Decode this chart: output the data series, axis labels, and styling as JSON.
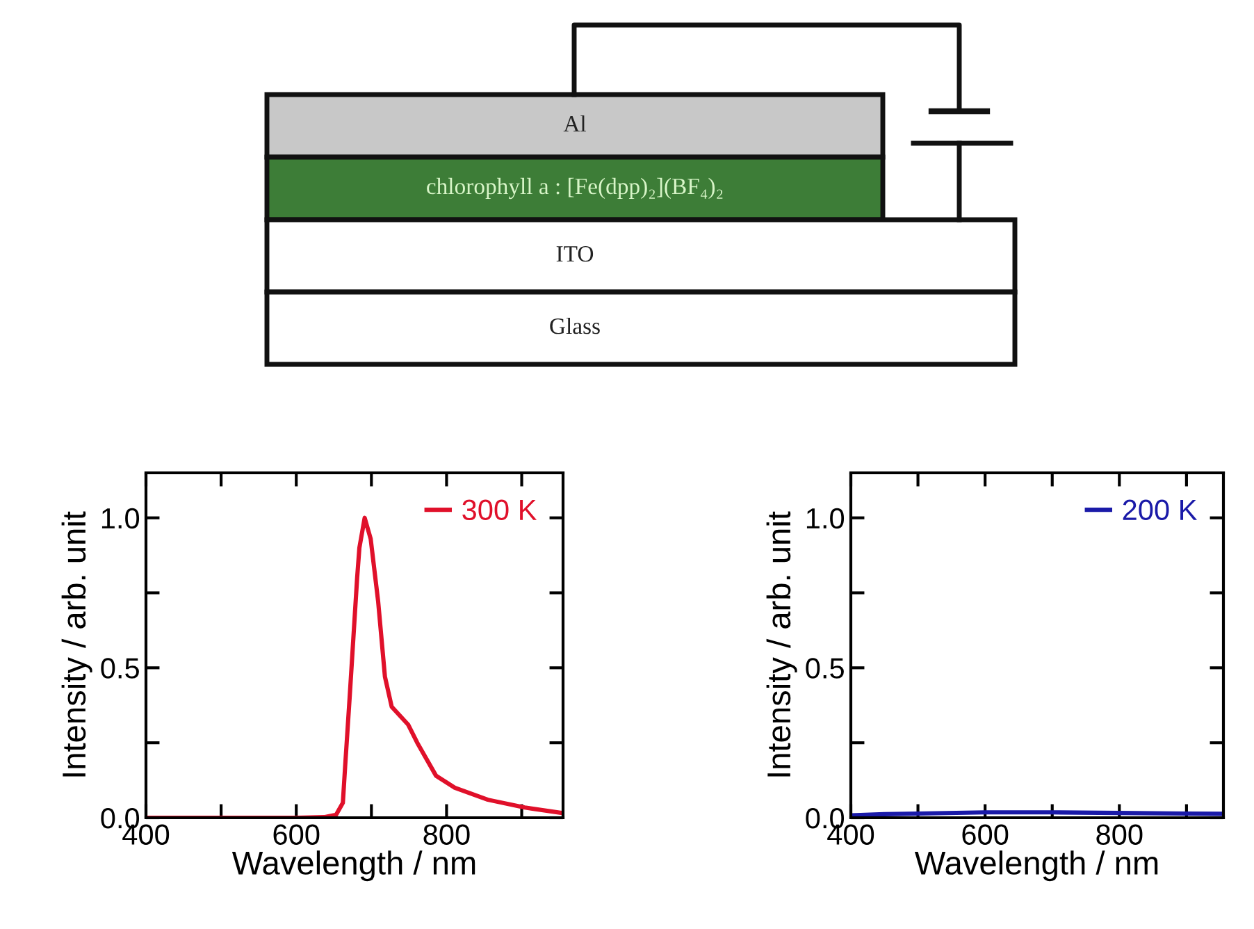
{
  "chart_data": [
    {
      "type": "other",
      "annotations": [
        "Al",
        "chlorophyll a : [Fe(dpp)₂](BF₄)₂",
        "ITO",
        "Glass"
      ]
    },
    {
      "type": "line",
      "xlabel": "Wavelength / nm",
      "ylabel": "Intensity / arb. unit",
      "legend": "top right",
      "xlim": [
        400,
        955
      ],
      "ylim": [
        0,
        1.15
      ],
      "xticks": [
        400,
        {
          "value": 500,
          "label": null
        },
        600,
        {
          "value": 700,
          "label": null
        },
        800,
        {
          "value": 900,
          "label": null
        }
      ],
      "yticks": [
        {
          "value": 0,
          "label": "0.0"
        },
        {
          "value": 0.25,
          "label": null
        },
        0.5,
        {
          "value": 0.75,
          "label": null
        },
        {
          "value": 1,
          "label": "1.0"
        }
      ],
      "series": [
        {
          "name": "300 K",
          "color": "#e0102a",
          "x": [
            400,
            500,
            600,
            637,
            653,
            662,
            665,
            671,
            675,
            681,
            684,
            691,
            699,
            709,
            718,
            727,
            749,
            761,
            786,
            811,
            855,
            904,
            953
          ],
          "values": [
            0,
            0,
            0,
            0.002,
            0.01,
            0.05,
            0.17,
            0.4,
            0.56,
            0.8,
            0.9,
            1.0,
            0.93,
            0.72,
            0.47,
            0.37,
            0.31,
            0.25,
            0.14,
            0.1,
            0.06,
            0.034,
            0.016
          ]
        }
      ]
    },
    {
      "type": "line",
      "xlabel": "Wavelength / nm",
      "ylabel": "Intensity / arb. unit",
      "legend": "top right",
      "xlim": [
        400,
        955
      ],
      "ylim": [
        0,
        1.15
      ],
      "xticks": [
        400,
        {
          "value": 500,
          "label": null
        },
        600,
        {
          "value": 700,
          "label": null
        },
        800,
        {
          "value": 900,
          "label": null
        }
      ],
      "yticks": [
        {
          "value": 0,
          "label": "0.0"
        },
        {
          "value": 0.25,
          "label": null
        },
        0.5,
        {
          "value": 0.75,
          "label": null
        },
        {
          "value": 1,
          "label": "1.0"
        }
      ],
      "series": [
        {
          "name": "200 K",
          "color": "#1a1aa8",
          "x": [
            400,
            450,
            500,
            600,
            700,
            800,
            900,
            955
          ],
          "values": [
            0.008,
            0.012,
            0.014,
            0.018,
            0.018,
            0.016,
            0.014,
            0.013
          ]
        }
      ]
    }
  ]
}
